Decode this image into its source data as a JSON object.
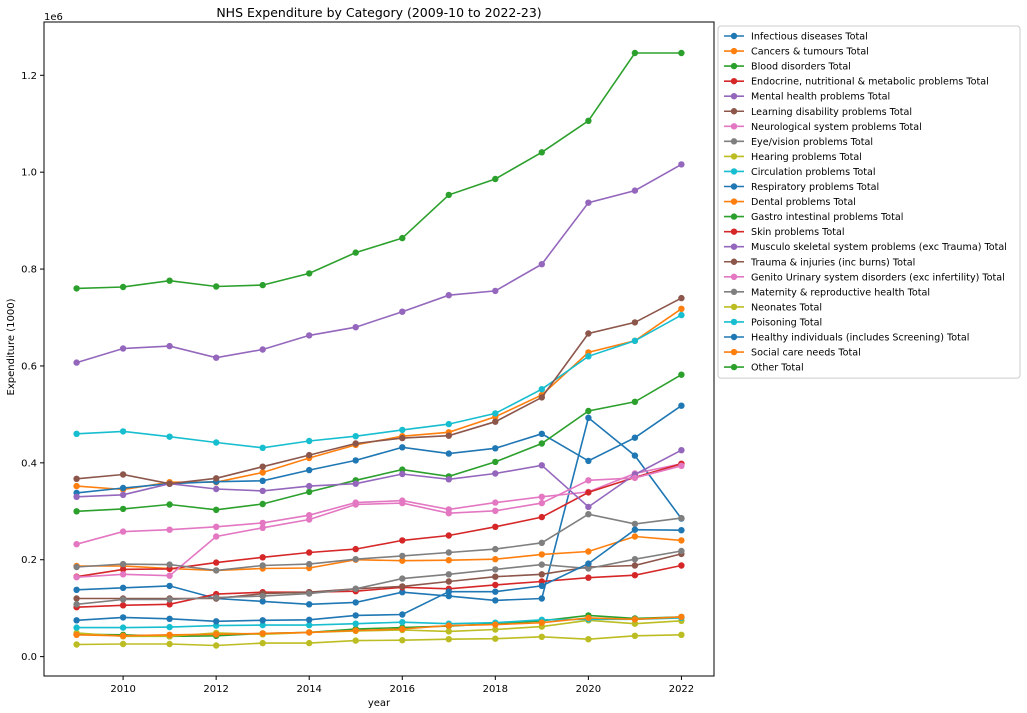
{
  "chart_data": {
    "type": "line",
    "title": "NHS Expenditure by Category (2009-10 to 2022-23)",
    "xlabel": "year",
    "ylabel": "Expenditure (1000)",
    "y_offset_label": "1e6",
    "xlim": [
      2008.3,
      2022.7
    ],
    "ylim": [
      -40000,
      1310000
    ],
    "x_ticks": [
      2010,
      2012,
      2014,
      2016,
      2018,
      2020,
      2022
    ],
    "y_ticks": [
      0,
      200000,
      400000,
      600000,
      800000,
      1000000,
      1200000
    ],
    "y_tick_labels": [
      "0.0",
      "0.2",
      "0.4",
      "0.6",
      "0.8",
      "1.0",
      "1.2"
    ],
    "grid": false,
    "legend_position": "outside-right",
    "x": [
      2009,
      2010,
      2011,
      2012,
      2013,
      2014,
      2015,
      2016,
      2017,
      2018,
      2019,
      2020,
      2021,
      2022
    ],
    "series": [
      {
        "name": "Infectious diseases Total",
        "color": "#1f77b4",
        "values": [
          138000,
          142000,
          146000,
          120000,
          114000,
          108000,
          112000,
          133000,
          125000,
          116000,
          120000,
          493000,
          415000,
          285000
        ]
      },
      {
        "name": "Cancers & tumours Total",
        "color": "#ff7f0e",
        "values": [
          352000,
          345000,
          360000,
          360000,
          380000,
          410000,
          437000,
          455000,
          463000,
          495000,
          540000,
          628000,
          652000,
          718000
        ]
      },
      {
        "name": "Blood disorders Total",
        "color": "#2ca02c",
        "values": [
          46000,
          45000,
          42000,
          43000,
          48000,
          50000,
          57000,
          60000,
          63000,
          68000,
          74000,
          85000,
          79000,
          82000
        ]
      },
      {
        "name": "Endocrine, nutritional & metabolic problems Total",
        "color": "#d62728",
        "values": [
          102000,
          106000,
          108000,
          129000,
          133000,
          133000,
          135000,
          143000,
          140000,
          148000,
          155000,
          163000,
          168000,
          188000
        ]
      },
      {
        "name": "Mental health problems Total",
        "color": "#9467bd",
        "values": [
          607000,
          636000,
          641000,
          617000,
          634000,
          663000,
          680000,
          712000,
          746000,
          755000,
          810000,
          937000,
          962000,
          1016000
        ]
      },
      {
        "name": "Learning disability problems Total",
        "color": "#8c564b",
        "values": [
          120000,
          120000,
          120000,
          120000,
          130000,
          133000,
          140000,
          145000,
          155000,
          165000,
          170000,
          185000,
          188000,
          212000
        ]
      },
      {
        "name": "Neurological system problems Total",
        "color": "#e377c2",
        "values": [
          232000,
          258000,
          262000,
          268000,
          276000,
          292000,
          318000,
          322000,
          304000,
          318000,
          330000,
          340000,
          378000,
          398000
        ]
      },
      {
        "name": "Eye/vision problems Total",
        "color": "#7f7f7f",
        "values": [
          108000,
          118000,
          118000,
          122000,
          125000,
          130000,
          140000,
          161000,
          170000,
          180000,
          190000,
          182000,
          201000,
          218000
        ]
      },
      {
        "name": "Hearing problems Total",
        "color": "#bcbd22",
        "values": [
          25000,
          26000,
          26000,
          23000,
          28000,
          28000,
          33000,
          34000,
          36000,
          37000,
          41000,
          36000,
          43000,
          45000
        ]
      },
      {
        "name": "Circulation problems Total",
        "color": "#17becf",
        "values": [
          460000,
          465000,
          454000,
          442000,
          431000,
          445000,
          455000,
          468000,
          480000,
          502000,
          552000,
          620000,
          652000,
          705000
        ]
      },
      {
        "name": "Respiratory problems Total",
        "color": "#1f77b4",
        "values": [
          338000,
          348000,
          357000,
          361000,
          363000,
          385000,
          405000,
          432000,
          419000,
          430000,
          460000,
          404000,
          452000,
          518000
        ]
      },
      {
        "name": "Dental problems Total",
        "color": "#ff7f0e",
        "values": [
          187000,
          187000,
          182000,
          178000,
          182000,
          183000,
          200000,
          198000,
          199000,
          201000,
          211000,
          217000,
          248000,
          240000
        ]
      },
      {
        "name": "Gastro intestinal problems Total",
        "color": "#2ca02c",
        "values": [
          300000,
          305000,
          314000,
          303000,
          315000,
          340000,
          364000,
          386000,
          372000,
          402000,
          440000,
          507000,
          526000,
          582000
        ]
      },
      {
        "name": "Skin problems Total",
        "color": "#d62728",
        "values": [
          165000,
          180000,
          181000,
          194000,
          205000,
          215000,
          222000,
          240000,
          250000,
          268000,
          288000,
          339000,
          370000,
          398000
        ]
      },
      {
        "name": "Musculo skeletal system problems (exc Trauma) Total",
        "color": "#9467bd",
        "values": [
          330000,
          334000,
          357000,
          346000,
          342000,
          352000,
          357000,
          377000,
          366000,
          378000,
          395000,
          309000,
          376000,
          426000
        ]
      },
      {
        "name": "Trauma & injuries (inc burns) Total",
        "color": "#8c564b",
        "values": [
          367000,
          376000,
          357000,
          368000,
          392000,
          416000,
          440000,
          451000,
          456000,
          485000,
          535000,
          667000,
          690000,
          740000
        ]
      },
      {
        "name": "Genito Urinary system disorders (exc infertility) Total",
        "color": "#e377c2",
        "values": [
          164000,
          170000,
          167000,
          248000,
          266000,
          283000,
          314000,
          317000,
          296000,
          301000,
          317000,
          364000,
          369000,
          394000
        ]
      },
      {
        "name": "Maternity & reproductive health Total",
        "color": "#7f7f7f",
        "values": [
          185000,
          191000,
          190000,
          178000,
          188000,
          191000,
          201000,
          208000,
          215000,
          222000,
          235000,
          294000,
          274000,
          286000
        ]
      },
      {
        "name": "Neonates Total",
        "color": "#bcbd22",
        "values": [
          49000,
          42000,
          42000,
          49000,
          46000,
          50000,
          53000,
          55000,
          52000,
          56000,
          62000,
          75000,
          68000,
          74000
        ]
      },
      {
        "name": "Poisoning Total",
        "color": "#17becf",
        "values": [
          60000,
          60000,
          61000,
          64000,
          65000,
          65000,
          68000,
          71000,
          68000,
          70000,
          76000,
          77000,
          77000,
          80000
        ]
      },
      {
        "name": "Healthy individuals (includes Screening) Total",
        "color": "#1f77b4",
        "values": [
          75000,
          81000,
          78000,
          73000,
          75000,
          76000,
          85000,
          87000,
          134000,
          134000,
          146000,
          192000,
          262000,
          261000
        ]
      },
      {
        "name": "Social care needs Total",
        "color": "#ff7f0e",
        "values": [
          45000,
          43000,
          45000,
          46000,
          48000,
          50000,
          54000,
          57000,
          64000,
          66000,
          70000,
          80000,
          77000,
          82000
        ]
      },
      {
        "name": "Other Total",
        "color": "#2ca02c",
        "values": [
          760000,
          763000,
          776000,
          764000,
          767000,
          791000,
          834000,
          864000,
          953000,
          986000,
          1041000,
          1106000,
          1246000,
          1246000
        ]
      }
    ]
  }
}
